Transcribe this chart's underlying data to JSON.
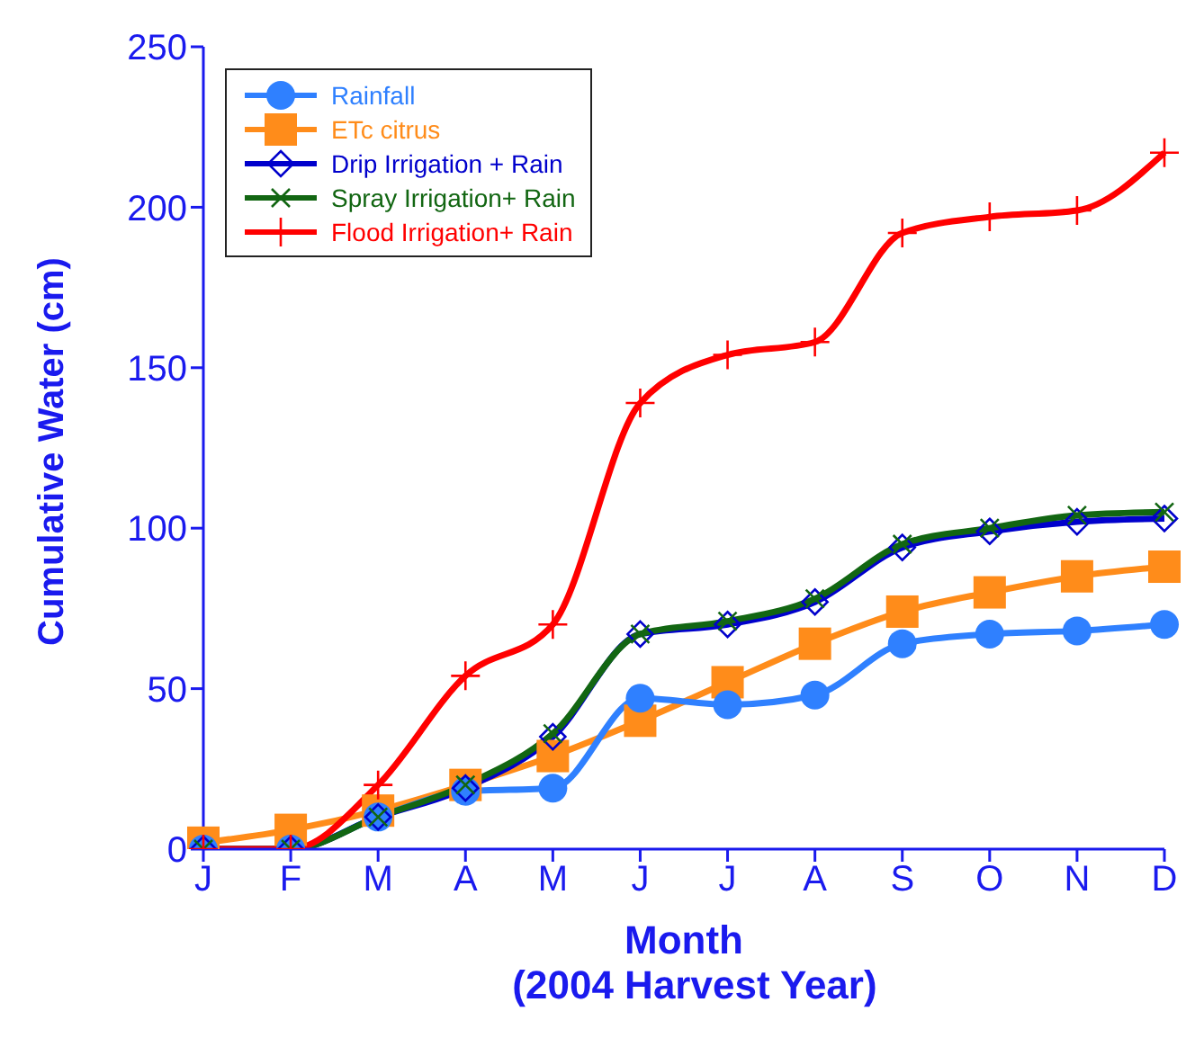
{
  "chart_data": {
    "type": "line",
    "xlabel": "Month",
    "ylabel": "Cumulative Water (cm)",
    "annotations": [
      "(2004 Harvest Year)"
    ],
    "categories": [
      "J",
      "F",
      "M",
      "A",
      "M",
      "J",
      "J",
      "A",
      "S",
      "O",
      "N",
      "D"
    ],
    "series": [
      {
        "name": "Rainfall",
        "color": "#2f80ff",
        "marker": "circle",
        "values": [
          0,
          0,
          10,
          18,
          19,
          47,
          45,
          48,
          64,
          67,
          68,
          70
        ]
      },
      {
        "name": "ETc citrus",
        "color": "#ff8c1a",
        "marker": "square",
        "values": [
          2,
          6,
          12,
          20,
          29,
          40,
          52,
          64,
          74,
          80,
          85,
          88
        ]
      },
      {
        "name": "Drip Irrigation + Rain",
        "color": "#0000cc",
        "marker": "diamond",
        "values": [
          0,
          0,
          10,
          19,
          35,
          67,
          70,
          77,
          94,
          99,
          102,
          103
        ]
      },
      {
        "name": "Spray Irrigation+ Rain",
        "color": "#126612",
        "marker": "cross",
        "values": [
          0,
          0,
          10,
          20,
          36,
          67,
          71,
          78,
          95,
          100,
          104,
          105
        ]
      },
      {
        "name": "Flood Irrigation+ Rain",
        "color": "#ff0000",
        "marker": "plus",
        "values": [
          0,
          0,
          20,
          54,
          70,
          139,
          154,
          158,
          192,
          197,
          199,
          217
        ]
      }
    ],
    "ylim": [
      0,
      250
    ],
    "yticks": [
      0,
      50,
      100,
      150,
      200,
      250
    ],
    "grid": false,
    "legend": "top left",
    "line_style": "solid"
  }
}
